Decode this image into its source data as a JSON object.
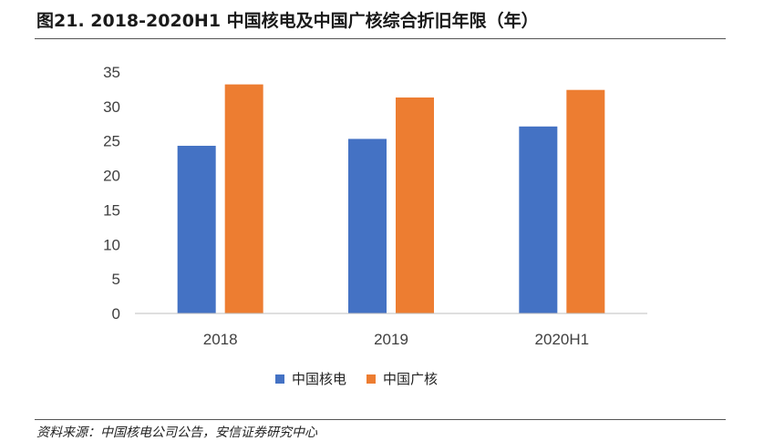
{
  "header": {
    "title": "图21. 2018-2020H1 中国核电及中国广核综合折旧年限（年）"
  },
  "footer": {
    "source": "资料来源：中国核电公司公告，安信证券研究中心"
  },
  "colors": {
    "series1": "#4472C4",
    "series2": "#ED7D31",
    "axis": "#BFBFBF",
    "tick_text": "#404040"
  },
  "chart_data": {
    "type": "bar",
    "title": "图21. 2018-2020H1 中国核电及中国广核综合折旧年限（年）",
    "xlabel": "",
    "ylabel": "",
    "categories": [
      "2018",
      "2019",
      "2020H1"
    ],
    "series": [
      {
        "name": "中国核电",
        "values": [
          24.3,
          25.3,
          27.1
        ]
      },
      {
        "name": "中国广核",
        "values": [
          33.2,
          31.3,
          32.4
        ]
      }
    ],
    "ylim": [
      0,
      35
    ],
    "yticks": [
      0,
      5,
      10,
      15,
      20,
      25,
      30,
      35
    ],
    "grid": false,
    "legend": "bottom"
  }
}
